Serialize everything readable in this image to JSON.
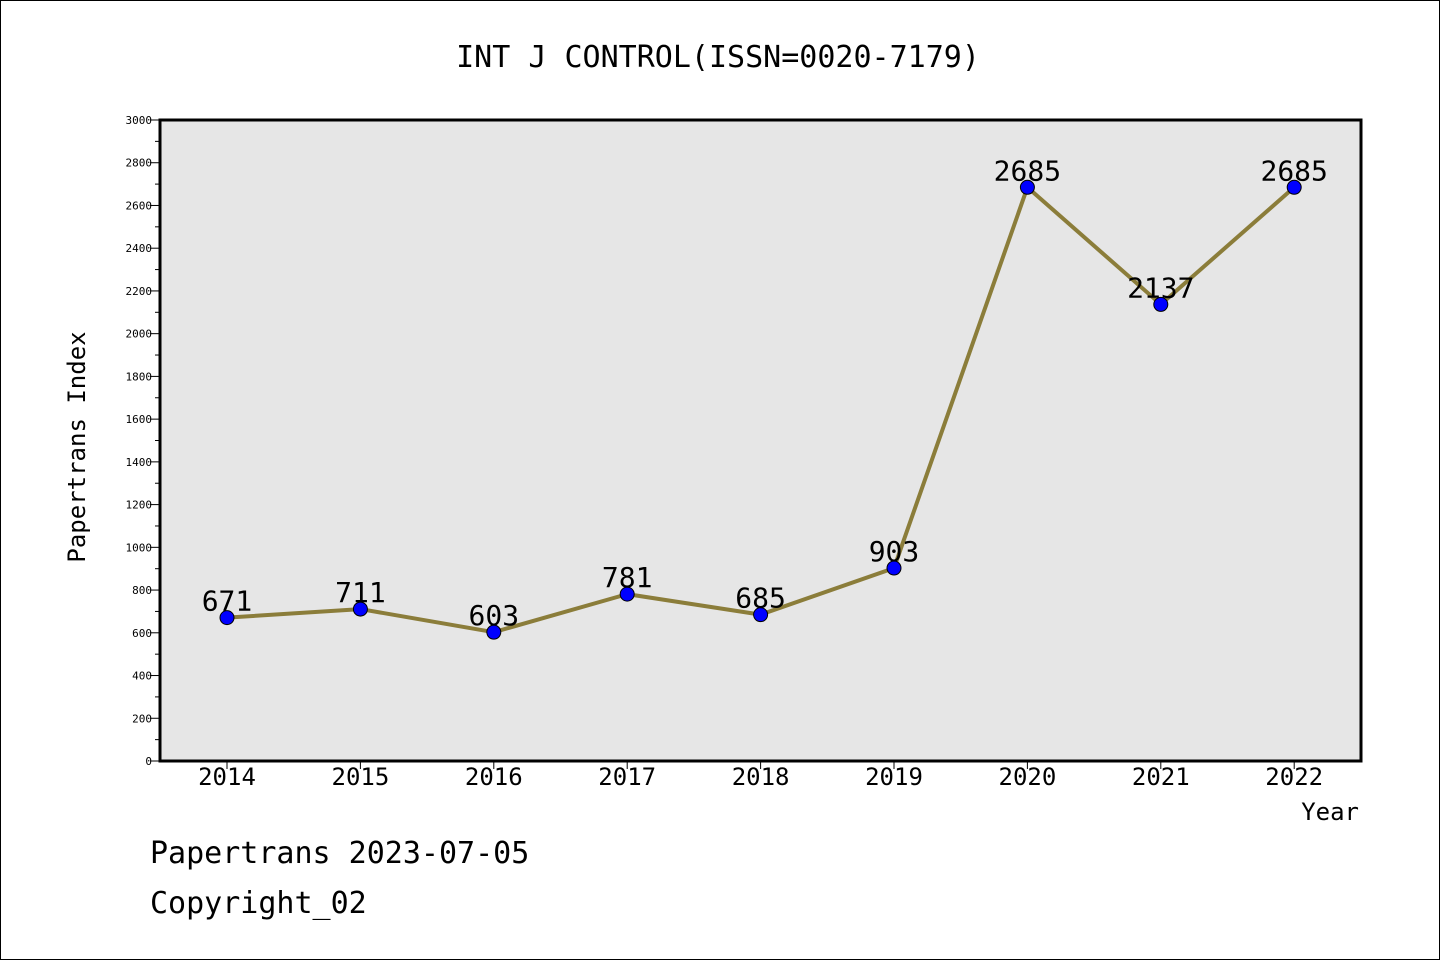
{
  "chart_data": {
    "type": "line",
    "title": "INT J CONTROL(ISSN=0020-7179)",
    "xlabel": "Year",
    "ylabel": "Papertrans Index",
    "categories": [
      "2014",
      "2015",
      "2016",
      "2017",
      "2018",
      "2019",
      "2020",
      "2021",
      "2022"
    ],
    "series": [
      {
        "values": [
          671,
          711,
          603,
          781,
          685,
          903,
          2685,
          2137,
          2685
        ]
      }
    ],
    "data_labels": [
      "671",
      "711",
      "603",
      "781",
      "685",
      "903",
      "2685",
      "2137",
      "2685"
    ],
    "ylim": [
      0,
      3000
    ],
    "yticks": [
      0,
      200,
      400,
      600,
      800,
      1000,
      1200,
      1400,
      1600,
      1800,
      2000,
      2200,
      2400,
      2600,
      2800,
      3000
    ],
    "grid": false,
    "legend": "none",
    "colors": {
      "line": "#8b7d3a",
      "marker": "#0000ff",
      "plot_background": "#e6e6e6"
    }
  },
  "footer": {
    "source": "Papertrans 2023-07-05",
    "copyright": "Copyright_02"
  }
}
